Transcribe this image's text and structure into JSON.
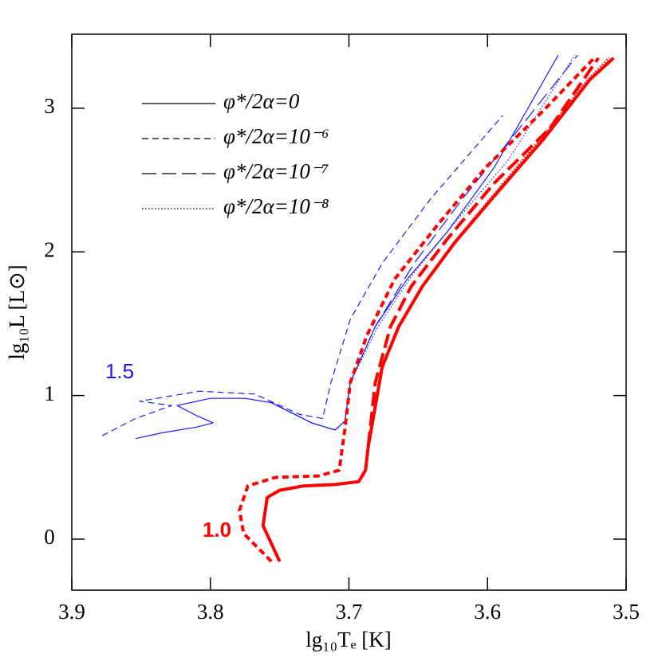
{
  "chart_data": {
    "type": "line",
    "x_label": "lg₁₀Tₑ [K]",
    "y_label": "lg₁₀L [L⊙]",
    "xlim": [
      3.9,
      3.5
    ],
    "xticks": [
      3.9,
      3.8,
      3.7,
      3.6,
      3.5
    ],
    "ylim": [
      -0.355,
      3.515
    ],
    "yticks": [
      0,
      1,
      2,
      3
    ],
    "annotations": [
      {
        "text": "1.5",
        "color": "#1a1aff"
      },
      {
        "text": "1.0",
        "color": "#ff0000"
      }
    ],
    "series": [
      {
        "name": "φ*/2α=0",
        "color": "#1a1aff",
        "linestyle": "solid",
        "linewidth": 1.2,
        "x": [
          3.854,
          3.835,
          3.81,
          3.798,
          3.81,
          3.824,
          3.8,
          3.775,
          3.756,
          3.727,
          3.71,
          3.703,
          3.699,
          3.681,
          3.658,
          3.629,
          3.595,
          3.549
        ],
        "y": [
          0.7,
          0.74,
          0.78,
          0.81,
          0.86,
          0.93,
          0.98,
          0.98,
          0.95,
          0.81,
          0.76,
          0.82,
          1.09,
          1.48,
          1.81,
          2.14,
          2.59,
          3.37
        ]
      },
      {
        "name": "φ*/2α=10⁻⁶",
        "color": "#1a1aff",
        "linestyle": "dashed",
        "linewidth": 1.2,
        "x": [
          3.878,
          3.854,
          3.828,
          3.851,
          3.808,
          3.768,
          3.736,
          3.719,
          3.713,
          3.699,
          3.676,
          3.641,
          3.589
        ],
        "y": [
          0.72,
          0.84,
          0.93,
          0.96,
          1.03,
          1.01,
          0.87,
          0.84,
          1.09,
          1.53,
          1.92,
          2.37,
          2.95
        ]
      },
      {
        "name": "φ*/2α=10⁻⁷",
        "color": "#1a1aff",
        "linestyle": "longdash",
        "linewidth": 1.2,
        "x": [
          3.756,
          3.727,
          3.71,
          3.703,
          3.699,
          3.681,
          3.653,
          3.618,
          3.572,
          3.535
        ],
        "y": [
          0.95,
          0.81,
          0.76,
          0.82,
          1.09,
          1.48,
          1.92,
          2.37,
          2.92,
          3.37
        ]
      },
      {
        "name": "φ*/2α=10⁻⁸",
        "color": "#1a1aff",
        "linestyle": "dotted",
        "linewidth": 1.2,
        "x": [
          3.756,
          3.727,
          3.71,
          3.703,
          3.699,
          3.679,
          3.655,
          3.624,
          3.585,
          3.537
        ],
        "y": [
          0.95,
          0.81,
          0.76,
          0.82,
          1.09,
          1.48,
          1.83,
          2.2,
          2.64,
          3.37
        ]
      },
      {
        "name": "φ*/2α=0",
        "color": "#ff0000",
        "linestyle": "solid",
        "linewidth": 4,
        "x": [
          3.75,
          3.762,
          3.759,
          3.75,
          3.733,
          3.71,
          3.693,
          3.688,
          3.686,
          3.682,
          3.676,
          3.664,
          3.647,
          3.624,
          3.595,
          3.56,
          3.526,
          3.509
        ],
        "y": [
          -0.155,
          0.094,
          0.29,
          0.34,
          0.37,
          0.38,
          0.4,
          0.48,
          0.65,
          0.87,
          1.2,
          1.48,
          1.76,
          2.06,
          2.39,
          2.78,
          3.2,
          3.35
        ]
      },
      {
        "name": "φ*/2α=10⁻⁶",
        "color": "#ff0000",
        "linestyle": "dashed",
        "linewidth": 4,
        "x": [
          3.756,
          3.776,
          3.779,
          3.773,
          3.753,
          3.722,
          3.707,
          3.703,
          3.699,
          3.687,
          3.667,
          3.635,
          3.601,
          3.56,
          3.523
        ],
        "y": [
          -0.155,
          0.04,
          0.2,
          0.37,
          0.43,
          0.44,
          0.48,
          0.76,
          1.09,
          1.42,
          1.81,
          2.2,
          2.59,
          2.98,
          3.35
        ]
      },
      {
        "name": "φ*/2α=10⁻⁷",
        "color": "#ff0000",
        "linestyle": "longdash",
        "linewidth": 4,
        "x": [
          3.686,
          3.681,
          3.67,
          3.655,
          3.629,
          3.595,
          3.555,
          3.52
        ],
        "y": [
          0.65,
          1.09,
          1.48,
          1.76,
          2.09,
          2.48,
          2.86,
          3.35
        ]
      },
      {
        "name": "φ*/2α=10⁻⁸",
        "color": "#ff0000",
        "linestyle": "dotted",
        "linewidth": 4,
        "x": [
          3.686,
          3.682,
          3.676,
          3.664,
          3.647,
          3.624,
          3.595,
          3.561,
          3.527,
          3.512
        ],
        "y": [
          0.65,
          0.87,
          1.2,
          1.48,
          1.76,
          2.06,
          2.4,
          2.79,
          3.2,
          3.35
        ]
      }
    ]
  }
}
